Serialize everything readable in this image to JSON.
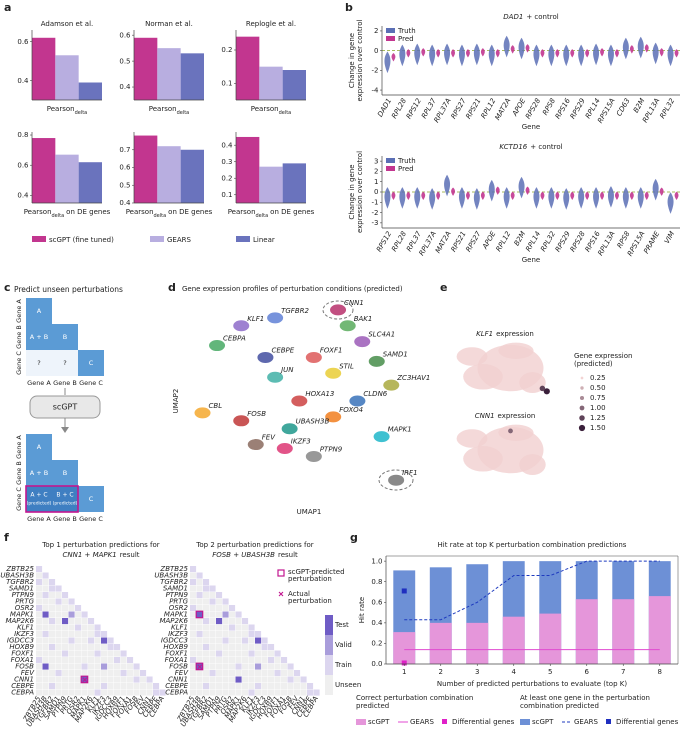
{
  "panel_labels": [
    "a",
    "b",
    "c",
    "d",
    "e",
    "f",
    "g"
  ],
  "bar_legend": [
    {
      "name": "scGPT (fine tuned)",
      "color": "#c2368f"
    },
    {
      "name": "GEARS",
      "color": "#b8aee0"
    },
    {
      "name": "Linear",
      "color": "#6a73bd"
    }
  ],
  "diagram": {
    "title": "Predict unseen perturbations",
    "genes": [
      "Gene A",
      "Gene B",
      "Gene C"
    ],
    "top_cells": [
      "A",
      "A + B",
      "B",
      "?",
      "?",
      "C"
    ],
    "model": "scGPT",
    "bottom_cells": [
      "A",
      "A + B",
      "B",
      "A + C",
      "(predicted)",
      "B + C",
      "(predicted)",
      "C"
    ]
  },
  "expression_legend": {
    "title": [
      "Gene expression",
      "(predicted)"
    ],
    "ticks": [
      0.25,
      {
        "value": 0.5,
        "label": "0.50"
      },
      0.75,
      {
        "value": 1,
        "label": "1.00"
      },
      1.25,
      {
        "value": 1.5,
        "label": "1.50"
      }
    ]
  },
  "heatmap_shared": {
    "levels": [
      "Unseen",
      "Train",
      "Valid",
      "Test"
    ],
    "colors": [
      "#efefef",
      "#dcd6ef",
      "#a99ddb",
      "#6f5cc5"
    ],
    "predicted_label": [
      "scGPT-predicted",
      "perturbation"
    ],
    "actual_label": [
      "Actual",
      "perturbation"
    ],
    "matrix": [
      [
        1
      ],
      [
        0,
        1
      ],
      [
        1,
        0,
        1
      ],
      [
        0,
        0,
        1,
        1
      ],
      [
        0,
        1,
        0,
        0,
        1
      ],
      [
        0,
        0,
        0,
        1,
        0,
        1
      ],
      [
        1,
        0,
        0,
        0,
        0,
        0,
        1
      ],
      [
        0,
        3,
        0,
        0,
        0,
        2,
        0,
        1
      ],
      [
        0,
        0,
        1,
        0,
        3,
        0,
        0,
        0,
        1
      ],
      [
        0,
        0,
        0,
        0,
        0,
        0,
        1,
        0,
        0,
        1
      ],
      [
        0,
        1,
        0,
        0,
        0,
        0,
        0,
        0,
        0,
        1,
        1
      ],
      [
        0,
        0,
        0,
        0,
        0,
        1,
        0,
        0,
        1,
        0,
        3,
        1
      ],
      [
        0,
        0,
        1,
        0,
        0,
        0,
        0,
        0,
        0,
        0,
        0,
        1,
        1
      ],
      [
        0,
        0,
        0,
        0,
        1,
        0,
        0,
        0,
        0,
        1,
        0,
        0,
        0,
        1
      ],
      [
        1,
        0,
        0,
        0,
        0,
        0,
        0,
        0,
        0,
        0,
        0,
        0,
        1,
        0,
        1
      ],
      [
        0,
        3,
        0,
        0,
        0,
        0,
        0,
        1,
        0,
        0,
        2,
        0,
        0,
        0,
        0,
        1
      ],
      [
        0,
        0,
        0,
        1,
        0,
        0,
        0,
        0,
        0,
        0,
        0,
        0,
        0,
        1,
        0,
        0,
        1
      ],
      [
        0,
        0,
        0,
        0,
        0,
        0,
        0,
        3,
        0,
        0,
        0,
        0,
        0,
        0,
        0,
        1,
        0,
        1
      ],
      [
        0,
        0,
        1,
        0,
        0,
        0,
        0,
        0,
        0,
        0,
        1,
        0,
        0,
        0,
        0,
        0,
        0,
        0,
        1
      ],
      [
        0,
        0,
        0,
        0,
        0,
        0,
        0,
        0,
        0,
        1,
        0,
        0,
        0,
        0,
        0,
        0,
        0,
        0,
        1,
        1
      ]
    ]
  },
  "chart_data": [
    {
      "type": "bar",
      "title": "Adamson et al.",
      "xlabel": {
        "text": "Pearson",
        "sub": "delta"
      },
      "values": [
        0.62,
        0.53,
        0.39
      ],
      "ylim": [
        0.3,
        0.66
      ],
      "yticks": [
        0.4,
        0.6
      ]
    },
    {
      "type": "bar",
      "title": "Norman et al.",
      "xlabel": {
        "text": "Pearson",
        "sub": "delta"
      },
      "values": [
        0.59,
        0.55,
        0.53
      ],
      "ylim": [
        0.35,
        0.62
      ],
      "yticks": [
        0.4,
        0.5,
        0.6
      ]
    },
    {
      "type": "bar",
      "title": "Replogle et al.",
      "xlabel": {
        "text": "Pearson",
        "sub": "delta"
      },
      "values": [
        0.24,
        0.15,
        0.14
      ],
      "ylim": [
        0.05,
        0.26
      ],
      "yticks": [
        0.1,
        0.2
      ]
    },
    {
      "type": "bar",
      "xlabel": {
        "text": "Pearson",
        "sub": "delta",
        "rest": "on DE genes"
      },
      "values": [
        0.78,
        0.67,
        0.62
      ],
      "ylim": [
        0.35,
        0.82
      ],
      "yticks": [
        0.4,
        0.6,
        0.8
      ]
    },
    {
      "type": "bar",
      "xlabel": {
        "text": "Pearson",
        "sub": "delta",
        "rest": "on DE genes"
      },
      "values": [
        0.78,
        0.72,
        0.7
      ],
      "ylim": [
        0.4,
        0.8
      ],
      "yticks": [
        0.4,
        0.5,
        0.6,
        0.7
      ]
    },
    {
      "type": "bar",
      "xlabel": {
        "text": "Pearson",
        "sub": "delta",
        "rest": "on DE genes"
      },
      "values": [
        0.45,
        0.27,
        0.29
      ],
      "ylim": [
        0.05,
        0.48
      ],
      "yticks": [
        0.1,
        0.2,
        0.3,
        0.4
      ]
    },
    {
      "type": "violin",
      "title": "DAD1",
      "title_rest": "+ control",
      "ylabel": [
        "Change in gene",
        "expression over control"
      ],
      "xlabel": "Gene",
      "categories": [
        "DAD1",
        "RPL28",
        "RPS12",
        "RPL37",
        "RPL37A",
        "RPS27",
        "RPS21",
        "RPL12",
        "MAT2A",
        "APOE",
        "RPS28",
        "RPS8",
        "RPS16",
        "RPS29",
        "RPL14",
        "RPS15A",
        "CD63",
        "B2M",
        "RPL13A",
        "RPL32"
      ],
      "series": [
        {
          "name": "Truth",
          "color": "#5b6fb5",
          "values": [
            -1.0,
            -0.3,
            -0.2,
            -0.3,
            -0.2,
            -0.3,
            -0.2,
            -0.3,
            0.6,
            0.4,
            -0.3,
            -0.3,
            -0.3,
            -0.3,
            -0.2,
            -0.3,
            0.4,
            0.5,
            -0.1,
            -0.3
          ]
        },
        {
          "name": "Pred",
          "color": "#c2368f",
          "values": [
            -0.6,
            -0.2,
            -0.1,
            -0.2,
            -0.2,
            -0.2,
            -0.1,
            -0.2,
            0.2,
            0.3,
            -0.2,
            -0.2,
            -0.2,
            -0.2,
            -0.1,
            -0.2,
            0.2,
            0.3,
            -0.1,
            -0.2
          ]
        }
      ],
      "ylim": [
        -4.5,
        2.5
      ],
      "yticks": [
        2,
        0,
        -2,
        -4
      ]
    },
    {
      "type": "violin",
      "title": "KCTD16",
      "title_rest": "+ control",
      "ylabel": [
        "Change in gene",
        "expression over control"
      ],
      "xlabel": "Gene",
      "categories": [
        "RPS12",
        "RPL28",
        "RPL37",
        "RPL37A",
        "MAT2A",
        "RPS21",
        "RPS27",
        "APOE",
        "RPL12",
        "B2M",
        "RPL14",
        "RPL32",
        "RPS29",
        "RPS28",
        "RPS16",
        "RPL13A",
        "RPS8",
        "RPS15A",
        "PRAME",
        "VIM"
      ],
      "series": [
        {
          "name": "Truth",
          "color": "#5b6fb5",
          "values": [
            -0.4,
            -0.4,
            -0.4,
            -0.5,
            0.8,
            -0.4,
            -0.5,
            0.3,
            -0.4,
            0.6,
            -0.4,
            -0.4,
            -0.5,
            -0.4,
            -0.4,
            -0.3,
            -0.4,
            -0.4,
            0.4,
            -0.9
          ]
        },
        {
          "name": "Pred",
          "color": "#c2368f",
          "values": [
            -0.3,
            -0.3,
            -0.3,
            -0.3,
            0.1,
            -0.3,
            -0.3,
            0.2,
            -0.3,
            0.2,
            -0.3,
            -0.3,
            -0.3,
            -0.3,
            -0.3,
            -0.3,
            -0.3,
            -0.3,
            0.1,
            -0.3
          ]
        }
      ],
      "ylim": [
        -3.5,
        3.5
      ],
      "yticks": [
        3,
        2,
        1,
        0,
        -1,
        -2,
        -3
      ]
    },
    {
      "type": "scatter",
      "title": "Gene expression profiles of perturbation conditions (predicted)",
      "xlabel": "UMAP1",
      "ylabel": "UMAP2",
      "xlim": [
        0,
        100
      ],
      "ylim": [
        0,
        100
      ],
      "labels": [
        "CEBPA",
        "KLF1",
        "TGFBR2",
        "CEBPE",
        "JUN",
        "FOXF1",
        "BAK1",
        "SLC4A1",
        "STIL",
        "SAMD1",
        "ZC3HAV1",
        "CLDN6",
        "HOXA13",
        "FOXO4",
        "CBL",
        "FOSB",
        "UBASH3B",
        "FEV",
        "IKZF3",
        "PTPN9",
        "MAPK1",
        "CNN1",
        "IRF1"
      ],
      "x": [
        12,
        22,
        36,
        32,
        36,
        52,
        66,
        72,
        60,
        78,
        84,
        70,
        46,
        60,
        6,
        22,
        42,
        28,
        40,
        52,
        80,
        62,
        86
      ],
      "y": [
        78,
        88,
        92,
        72,
        62,
        72,
        88,
        80,
        64,
        70,
        58,
        50,
        50,
        42,
        44,
        40,
        36,
        28,
        26,
        22,
        32,
        96,
        10
      ],
      "colors": [
        "#2e9e4f",
        "#7e57c2",
        "#4a6fd0",
        "#283593",
        "#26a69a",
        "#d84343",
        "#43a047",
        "#8e44ad",
        "#e6c619",
        "#2e7d32",
        "#9e9d24",
        "#1e5fb0",
        "#c62828",
        "#ef6c00",
        "#f39c12",
        "#b71c1c",
        "#00897b",
        "#795548",
        "#d81b60",
        "#757575",
        "#00acc1",
        "#ad1457",
        "#616161"
      ]
    },
    {
      "type": "expression",
      "title": "KLF1",
      "title_rest": "expression",
      "xlim": [
        0,
        100
      ],
      "ylim": [
        0,
        100
      ],
      "x": [
        88,
        84
      ],
      "y": [
        15,
        20
      ],
      "values": [
        1.5,
        1.25
      ]
    },
    {
      "type": "expression",
      "title": "CNN1",
      "title_rest": "expression",
      "xlim": [
        0,
        100
      ],
      "ylim": [
        0,
        100
      ],
      "x": [
        55
      ],
      "y": [
        88
      ],
      "values": [
        1.0
      ]
    },
    {
      "type": "heatmap",
      "title": "Top 1 perturbation predictions for",
      "subtitle_genes": "CNN1 + MAPK1",
      "subtitle_rest": "result",
      "categories": [
        "ZBTB25",
        "UBASH3B",
        "TGFBR2",
        "SAMD1",
        "PTPN9",
        "PRTG",
        "OSR2",
        "MAPK1",
        "MAP2K6",
        "KLF1",
        "IKZF3",
        "IGDCC3",
        "HOXB9",
        "FOXF1",
        "FOXA1",
        "FOSB",
        "FEV",
        "CNN1",
        "CEBPE",
        "CEBPA"
      ],
      "predicted": [
        [
          17,
          7
        ]
      ],
      "actual": [
        [
          17,
          7
        ]
      ]
    },
    {
      "type": "heatmap",
      "title": "Top 2 perturbation predictions for",
      "subtitle_genes": "FOSB + UBASH3B",
      "subtitle_rest": "result",
      "categories": [
        "ZBTB25",
        "UBASH3B",
        "TGFBR2",
        "SAMD1",
        "PTPN9",
        "PRTG",
        "OSR2",
        "MAPK1",
        "MAP2K6",
        "KLF1",
        "IKZF3",
        "IGDCC3",
        "HOXB9",
        "FOXF1",
        "FOXA1",
        "FOSB",
        "FEV",
        "CNN1",
        "CEBPE",
        "CEBPA"
      ],
      "predicted": [
        [
          7,
          1
        ],
        [
          15,
          1
        ]
      ],
      "actual": [
        [
          15,
          1
        ]
      ]
    },
    {
      "type": "hit",
      "title": "Hit rate at top K perturbation combination predictions",
      "xlabel": "Number of predicted perturbations to evaluate (top K)",
      "ylabel": "Hit rate",
      "x": [
        1,
        2,
        3,
        4,
        5,
        6,
        7,
        8
      ],
      "xlim": [
        0.5,
        8.5
      ],
      "xticks": [
        1,
        2,
        3,
        4,
        5,
        6,
        7,
        8
      ],
      "ylim": [
        0,
        1.05
      ],
      "yticks": [
        {
          "value": 0,
          "label": "0.0"
        },
        0.2,
        0.4,
        0.6,
        0.8,
        {
          "value": 1,
          "label": "1.0"
        }
      ],
      "legend_groups": [
        [
          "Correct perturbation combination",
          "predicted"
        ],
        [
          "At least one gene in the perturbation",
          "combination predicted"
        ]
      ],
      "series": [
        {
          "name": "scGPT",
          "group": 1,
          "kind": "bar",
          "color": "#6d90d6",
          "values": [
            0.91,
            0.94,
            0.97,
            1,
            1,
            1,
            1,
            1
          ]
        },
        {
          "name": "scGPT",
          "group": 0,
          "kind": "bar",
          "color": "#e596da",
          "values": [
            0.31,
            0.4,
            0.4,
            0.46,
            0.49,
            0.63,
            0.63,
            0.66
          ]
        },
        {
          "name": "GEARS",
          "group": 0,
          "kind": "line",
          "color": "#e04ad0",
          "values": [
            0.14,
            0.14,
            0.14,
            0.14,
            0.14,
            0.14,
            0.14,
            0.14
          ]
        },
        {
          "name": "GEARS",
          "group": 1,
          "kind": "line",
          "dash": true,
          "color": "#1f3bbf",
          "values": [
            0.43,
            0.43,
            0.6,
            0.86,
            0.86,
            1,
            1,
            1
          ]
        },
        {
          "name": "Differential genes",
          "group": 0,
          "kind": "point",
          "color": "#e020c8",
          "values": [
            0.01,
            null,
            null,
            null,
            null,
            null,
            null,
            null
          ]
        },
        {
          "name": "Differential genes",
          "group": 1,
          "kind": "point",
          "color": "#1f2fbf",
          "values": [
            0.71,
            null,
            null,
            null,
            null,
            null,
            null,
            null
          ]
        }
      ]
    }
  ]
}
